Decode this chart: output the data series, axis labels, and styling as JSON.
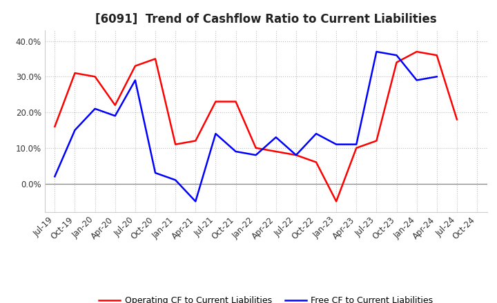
{
  "title": "[6091]  Trend of Cashflow Ratio to Current Liabilities",
  "x_labels": [
    "Jul-19",
    "Oct-19",
    "Jan-20",
    "Apr-20",
    "Jul-20",
    "Oct-20",
    "Jan-21",
    "Apr-21",
    "Jul-21",
    "Oct-21",
    "Jan-22",
    "Apr-22",
    "Jul-22",
    "Oct-22",
    "Jan-23",
    "Apr-23",
    "Jul-23",
    "Oct-23",
    "Jan-24",
    "Apr-24",
    "Jul-24",
    "Oct-24"
  ],
  "operating_cf": [
    0.16,
    0.31,
    0.3,
    0.22,
    0.33,
    0.35,
    0.11,
    0.12,
    0.23,
    0.23,
    0.1,
    0.09,
    0.08,
    0.06,
    -0.05,
    0.1,
    0.12,
    0.34,
    0.37,
    0.36,
    0.18,
    null
  ],
  "free_cf": [
    0.02,
    0.15,
    0.21,
    0.19,
    0.29,
    0.03,
    0.01,
    -0.05,
    0.14,
    0.09,
    0.08,
    0.13,
    0.08,
    0.14,
    0.11,
    0.11,
    0.37,
    0.36,
    0.29,
    0.3,
    null,
    null
  ],
  "operating_color": "#ff0000",
  "free_color": "#0000ff",
  "ylim": [
    -0.08,
    0.43
  ],
  "yticks": [
    0.0,
    0.1,
    0.2,
    0.3,
    0.4
  ],
  "ytick_labels": [
    "0.0%",
    "10.0%",
    "20.0%",
    "30.0%",
    "40.0%"
  ],
  "legend_operating": "Operating CF to Current Liabilities",
  "legend_free": "Free CF to Current Liabilities",
  "background_color": "#ffffff",
  "grid_color": "#bbbbbb",
  "title_fontsize": 12,
  "tick_fontsize": 8.5
}
